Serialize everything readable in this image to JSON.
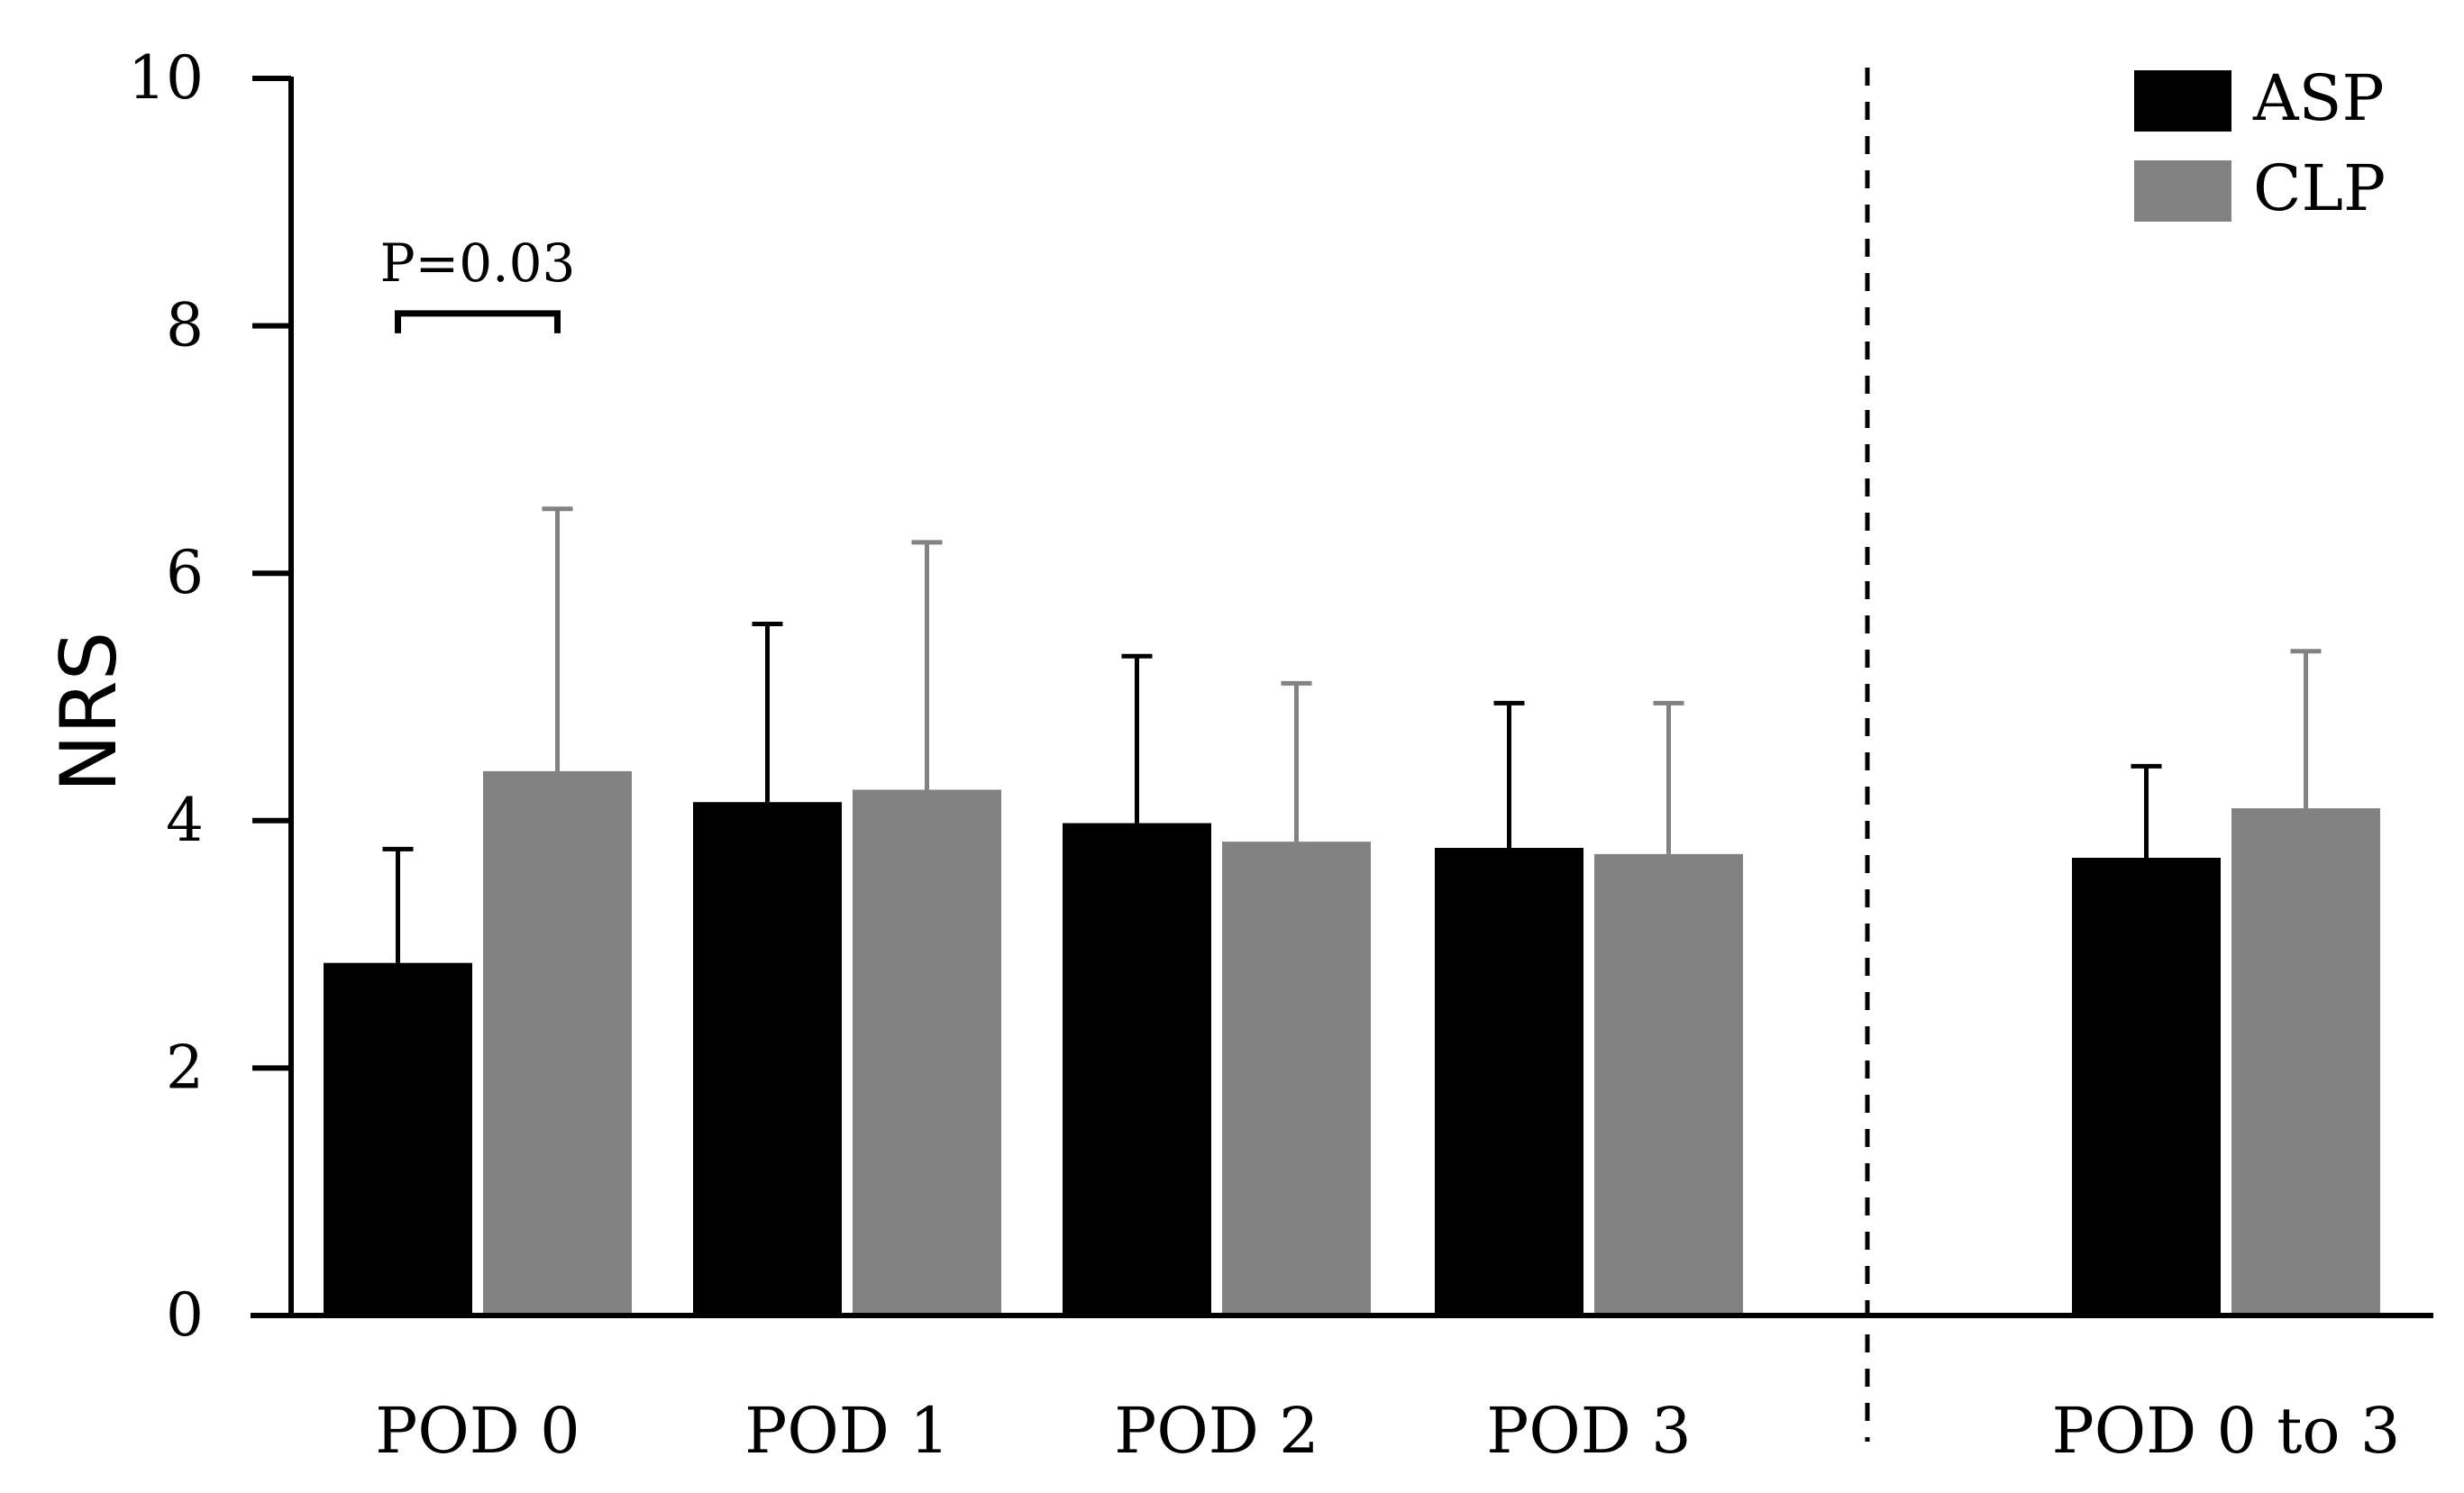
{
  "chart_data": {
    "type": "bar",
    "title": "",
    "xlabel": "",
    "ylabel": "NRS",
    "ylim": [
      0,
      10
    ],
    "yticks": [
      0,
      2,
      4,
      6,
      8,
      10
    ],
    "categories": [
      "POD 0",
      "POD 1",
      "POD 2",
      "POD 3",
      "POD 0 to 3"
    ],
    "series": [
      {
        "name": "ASP",
        "color": "#000000",
        "values": [
          2.85,
          4.15,
          3.98,
          3.78,
          3.7
        ],
        "errors": [
          0.92,
          1.44,
          1.35,
          1.17,
          0.74
        ]
      },
      {
        "name": "CLP",
        "color": "#828282",
        "values": [
          4.4,
          4.25,
          3.83,
          3.73,
          4.1
        ],
        "errors": [
          2.12,
          2.0,
          1.28,
          1.22,
          1.27
        ]
      }
    ],
    "separator_after_category": 3,
    "separator_style": "dashed",
    "legend_position": "top-right",
    "annotations": [
      {
        "text": "P=0.03",
        "category": "POD 0",
        "y": 8.1
      }
    ],
    "grid": false
  }
}
